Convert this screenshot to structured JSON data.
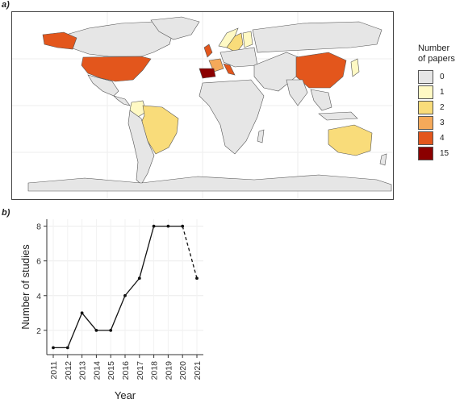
{
  "panels": {
    "a_label": "a)",
    "b_label": "b)"
  },
  "chart_data": [
    {
      "type": "choropleth-map",
      "panel": "a)",
      "legend": {
        "title": [
          "Number",
          "of papers"
        ],
        "entries": [
          {
            "label": "0",
            "color": "#e6e6e6"
          },
          {
            "label": "1",
            "color": "#fff9c4"
          },
          {
            "label": "2",
            "color": "#f9dc7a"
          },
          {
            "label": "3",
            "color": "#f5a95a"
          },
          {
            "label": "4",
            "color": "#e3561c"
          },
          {
            "label": "15",
            "color": "#8b0000"
          }
        ]
      },
      "countries": [
        {
          "name": "Spain",
          "value": 15
        },
        {
          "name": "United States",
          "value": 4
        },
        {
          "name": "China",
          "value": 4
        },
        {
          "name": "United Kingdom",
          "value": 4
        },
        {
          "name": "Italy",
          "value": 4
        },
        {
          "name": "Brazil",
          "value": 2
        },
        {
          "name": "Australia",
          "value": 2
        },
        {
          "name": "Sweden",
          "value": 2
        },
        {
          "name": "France",
          "value": 3
        },
        {
          "name": "Norway",
          "value": 1
        },
        {
          "name": "Japan",
          "value": 1
        },
        {
          "name": "Colombia",
          "value": 1
        }
      ]
    },
    {
      "type": "line",
      "panel": "b)",
      "x": [
        "2011",
        "2012",
        "2013",
        "2014",
        "2015",
        "2016",
        "2017",
        "2018",
        "2019",
        "2020",
        "2021"
      ],
      "y": [
        1,
        1,
        3,
        2,
        2,
        4,
        5,
        8,
        8,
        8,
        5
      ],
      "dashed_from_index": 9,
      "xlabel": "Year",
      "ylabel": "Number of studies",
      "yticks": [
        "2",
        "4",
        "6",
        "8"
      ],
      "ylim": [
        0.6,
        8.4
      ]
    }
  ]
}
